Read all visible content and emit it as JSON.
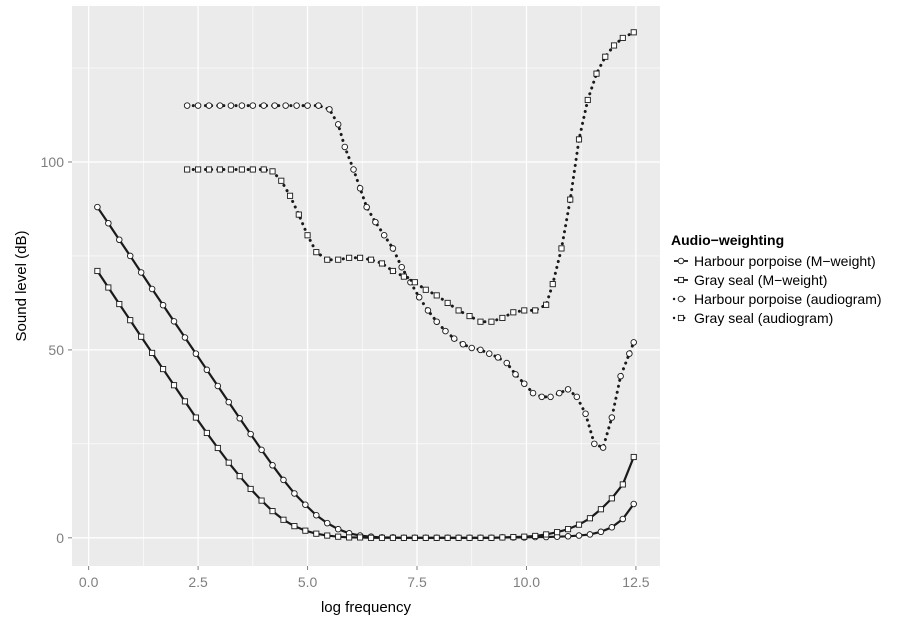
{
  "chart_data": {
    "type": "line",
    "title": "",
    "xlabel": "log frequency",
    "ylabel": "Sound level (dB)",
    "xlim": [
      -0.38,
      13.05
    ],
    "ylim": [
      -7.5,
      141.5
    ],
    "x_ticks": [
      {
        "value": 0,
        "label": "0.0"
      },
      {
        "value": 2.5,
        "label": "2.5"
      },
      {
        "value": 5,
        "label": "5.0"
      },
      {
        "value": 7.5,
        "label": "7.5"
      },
      {
        "value": 10,
        "label": "10.0"
      },
      {
        "value": 12.5,
        "label": "12.5"
      }
    ],
    "y_ticks": [
      {
        "value": 0,
        "label": "0"
      },
      {
        "value": 50,
        "label": "50"
      },
      {
        "value": 100,
        "label": "100"
      }
    ],
    "grid": true,
    "legend": {
      "title": "Audio−weighting",
      "position": "right"
    },
    "colors": {
      "panel": "#ebebeb",
      "grid": "#ffffff",
      "line": "#1a1a1a",
      "marker_fill": "#ffffff"
    },
    "series": [
      {
        "name": "Harbour porpoise (M−weight)",
        "marker": "circle",
        "linestyle": "solid",
        "x": [
          0.2,
          0.45,
          0.7,
          0.95,
          1.2,
          1.45,
          1.7,
          1.95,
          2.2,
          2.45,
          2.7,
          2.95,
          3.2,
          3.45,
          3.7,
          3.95,
          4.2,
          4.45,
          4.7,
          4.95,
          5.2,
          5.45,
          5.7,
          5.95,
          6.2,
          6.45,
          6.7,
          6.95,
          7.2,
          7.45,
          7.7,
          7.95,
          8.2,
          8.45,
          8.7,
          8.95,
          9.2,
          9.45,
          9.7,
          9.95,
          10.2,
          10.45,
          10.7,
          10.95,
          11.2,
          11.45,
          11.7,
          11.95,
          12.2,
          12.45
        ],
        "y": [
          88.0,
          83.7,
          79.3,
          75.0,
          70.6,
          66.2,
          61.9,
          57.6,
          53.3,
          49.0,
          44.7,
          40.4,
          36.1,
          31.8,
          27.6,
          23.4,
          19.3,
          15.4,
          11.8,
          8.8,
          6.0,
          3.9,
          2.3,
          1.2,
          0.6,
          0.3,
          0.1,
          0.1,
          0.0,
          0.0,
          0.0,
          0.0,
          0.0,
          0.0,
          0.0,
          0.0,
          0.0,
          0.1,
          0.1,
          0.1,
          0.2,
          0.2,
          0.3,
          0.4,
          0.6,
          0.9,
          1.6,
          2.8,
          5.0,
          9.0
        ]
      },
      {
        "name": "Gray seal (M−weight)",
        "marker": "square",
        "linestyle": "solid",
        "x": [
          0.2,
          0.45,
          0.7,
          0.95,
          1.2,
          1.45,
          1.7,
          1.95,
          2.2,
          2.45,
          2.7,
          2.95,
          3.2,
          3.45,
          3.7,
          3.95,
          4.2,
          4.45,
          4.7,
          4.95,
          5.2,
          5.45,
          5.7,
          5.95,
          6.2,
          6.45,
          6.7,
          6.95,
          7.2,
          7.45,
          7.7,
          7.95,
          8.2,
          8.45,
          8.7,
          8.95,
          9.2,
          9.45,
          9.7,
          9.95,
          10.2,
          10.45,
          10.7,
          10.95,
          11.2,
          11.45,
          11.7,
          11.95,
          12.2,
          12.45
        ],
        "y": [
          71.0,
          66.6,
          62.2,
          57.9,
          53.5,
          49.2,
          44.9,
          40.6,
          36.3,
          32.0,
          27.9,
          23.9,
          20.0,
          16.4,
          13.0,
          9.9,
          7.1,
          4.8,
          3.1,
          1.9,
          1.1,
          0.6,
          0.3,
          0.1,
          0.1,
          0.0,
          0.0,
          0.0,
          0.0,
          0.0,
          0.0,
          0.0,
          0.0,
          0.0,
          0.0,
          0.0,
          0.0,
          0.1,
          0.2,
          0.3,
          0.5,
          0.9,
          1.5,
          2.3,
          3.5,
          5.2,
          7.6,
          10.5,
          14.2,
          21.5
        ]
      },
      {
        "name": "Harbour porpoise (audiogram)",
        "marker": "circle",
        "linestyle": "dotted",
        "x": [
          2.25,
          2.5,
          2.75,
          3.0,
          3.25,
          3.5,
          3.75,
          4.0,
          4.25,
          4.5,
          4.75,
          5.0,
          5.25,
          5.5,
          5.7,
          5.85,
          6.05,
          6.2,
          6.35,
          6.55,
          6.75,
          6.95,
          7.15,
          7.35,
          7.55,
          7.75,
          7.95,
          8.15,
          8.35,
          8.55,
          8.75,
          8.95,
          9.15,
          9.35,
          9.55,
          9.75,
          9.95,
          10.15,
          10.35,
          10.55,
          10.75,
          10.95,
          11.15,
          11.35,
          11.55,
          11.75,
          11.95,
          12.15,
          12.35,
          12.45
        ],
        "y": [
          115.0,
          115.0,
          115.0,
          115.0,
          115.0,
          115.0,
          115.0,
          115.0,
          115.0,
          115.0,
          115.0,
          115.0,
          115.0,
          114.0,
          110.0,
          104.0,
          98.0,
          93.0,
          88.0,
          84.0,
          80.5,
          77.0,
          72.0,
          68.0,
          64.0,
          60.5,
          57.5,
          55.0,
          53.0,
          51.5,
          50.5,
          50.0,
          49.0,
          48.0,
          46.5,
          43.5,
          41.0,
          38.5,
          37.5,
          37.5,
          38.5,
          39.5,
          37.5,
          33.0,
          25.0,
          24.0,
          32.0,
          43.0,
          49.0,
          52.0
        ]
      },
      {
        "name": "Gray seal (audiogram)",
        "marker": "square",
        "linestyle": "dotted",
        "x": [
          2.25,
          2.5,
          2.75,
          3.0,
          3.25,
          3.5,
          3.75,
          4.0,
          4.2,
          4.4,
          4.6,
          4.8,
          5.0,
          5.2,
          5.45,
          5.7,
          5.95,
          6.2,
          6.45,
          6.7,
          6.95,
          7.2,
          7.45,
          7.7,
          7.95,
          8.2,
          8.45,
          8.7,
          8.95,
          9.2,
          9.45,
          9.7,
          9.95,
          10.2,
          10.45,
          10.6,
          10.8,
          11.0,
          11.2,
          11.4,
          11.6,
          11.8,
          12.0,
          12.2,
          12.45
        ],
        "y": [
          98.0,
          98.0,
          98.0,
          98.0,
          98.0,
          98.0,
          98.0,
          98.0,
          97.5,
          95.0,
          91.0,
          86.0,
          80.5,
          76.0,
          74.0,
          74.0,
          74.5,
          74.5,
          74.0,
          73.0,
          71.0,
          69.5,
          68.0,
          66.0,
          64.5,
          62.5,
          60.5,
          59.0,
          57.5,
          57.5,
          58.5,
          60.0,
          60.5,
          60.5,
          62.0,
          67.5,
          77.0,
          90.0,
          106.0,
          116.5,
          123.5,
          128.0,
          131.0,
          133.0,
          134.5
        ]
      }
    ]
  }
}
